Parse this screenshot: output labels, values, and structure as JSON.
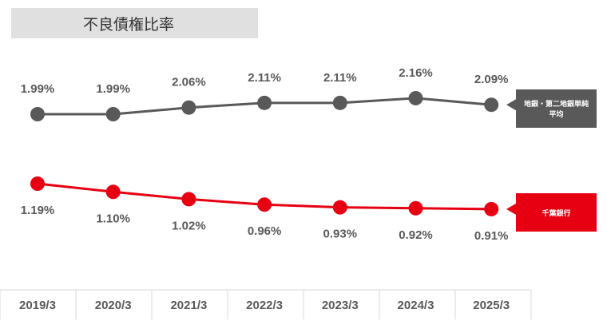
{
  "chart_data": {
    "type": "line",
    "title": "不良債権比率",
    "categories": [
      "2019/3",
      "2020/3",
      "2021/3",
      "2022/3",
      "2023/3",
      "2024/3",
      "2025/3"
    ],
    "series": [
      {
        "name": "地銀・第二地銀単純平均",
        "color": "#595959",
        "values": [
          1.99,
          1.99,
          2.06,
          2.11,
          2.11,
          2.16,
          2.09
        ],
        "labels": [
          "1.99%",
          "1.99%",
          "2.06%",
          "2.11%",
          "2.11%",
          "2.16%",
          "2.09%"
        ]
      },
      {
        "name": "千葉銀行",
        "color": "#e60012",
        "values": [
          1.19,
          1.1,
          1.02,
          0.96,
          0.93,
          0.92,
          0.91
        ],
        "labels": [
          "1.19%",
          "1.10%",
          "1.02%",
          "0.96%",
          "0.93%",
          "0.92%",
          "0.91%"
        ]
      }
    ],
    "grid": false,
    "legend": "right, callout labels"
  }
}
